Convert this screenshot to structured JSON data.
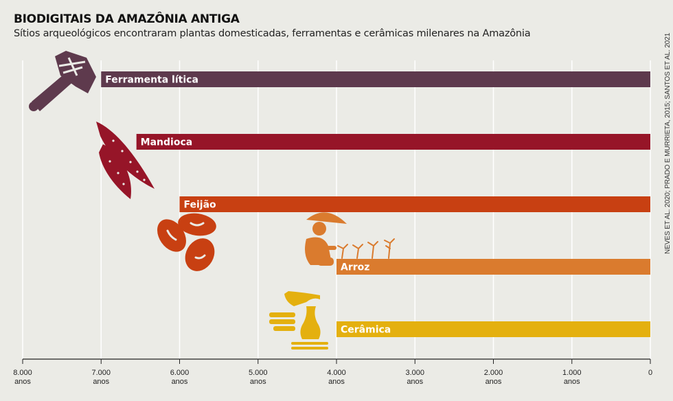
{
  "title": "BIODIGITAIS DA AMAZÔNIA ANTIGA",
  "subtitle": "Sítios arqueológicos encontraram plantas domesticadas, ferramentas e cerâmicas milenares na Amazônia",
  "source": "NEVES ET AL. 2020; PRADO E MURRIETA, 2015; SANTOS ET AL. 2021",
  "chart_data": {
    "type": "bar",
    "orientation": "horizontal",
    "x_reversed": true,
    "xlim": [
      8000,
      0
    ],
    "x_ticks": [
      {
        "value": 8000,
        "label": "8.000",
        "unit": "anos"
      },
      {
        "value": 7000,
        "label": "7.000",
        "unit": "anos"
      },
      {
        "value": 6000,
        "label": "6.000",
        "unit": "anos"
      },
      {
        "value": 5000,
        "label": "5.000",
        "unit": "anos"
      },
      {
        "value": 4000,
        "label": "4.000",
        "unit": "anos"
      },
      {
        "value": 3000,
        "label": "3.000",
        "unit": "anos"
      },
      {
        "value": 2000,
        "label": "2.000",
        "unit": "anos"
      },
      {
        "value": 1000,
        "label": "1.000",
        "unit": "anos"
      },
      {
        "value": 0,
        "label": "0",
        "unit": ""
      }
    ],
    "grid": "vertical",
    "bars": [
      {
        "label": "Ferramenta lítica",
        "start": 7000,
        "end": 0,
        "color": "#5e3a4d",
        "icon": "stone-axe-icon"
      },
      {
        "label": "Mandioca",
        "start": 6550,
        "end": 0,
        "color": "#961528",
        "icon": "cassava-icon"
      },
      {
        "label": "Feijão",
        "start": 6000,
        "end": 0,
        "color": "#c84012",
        "icon": "beans-icon"
      },
      {
        "label": "Arroz",
        "start": 4000,
        "end": 0,
        "color": "#da7b2e",
        "icon": "rice-farmer-icon"
      },
      {
        "label": "Cerâmica",
        "start": 4000,
        "end": 0,
        "color": "#e4b00f",
        "icon": "pottery-icon"
      }
    ]
  }
}
